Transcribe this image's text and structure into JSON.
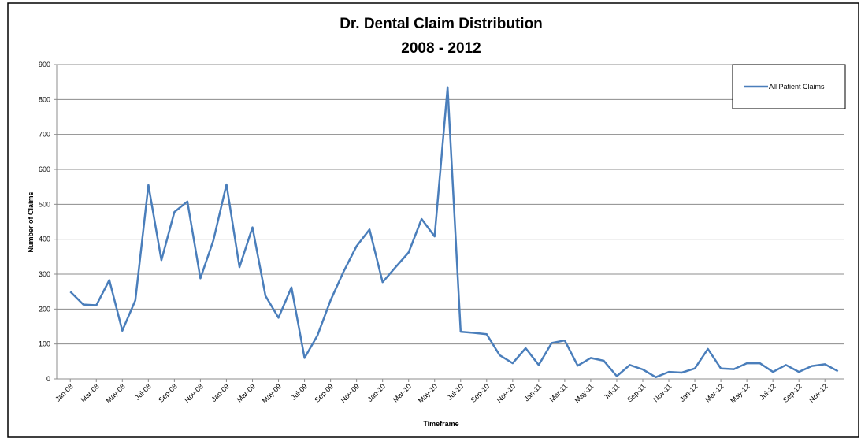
{
  "chart_data": {
    "type": "line",
    "title": "Dr. Dental Claim Distribution",
    "subtitle": "2008 - 2012",
    "x_label": "Timeframe",
    "y_label": "Number of Claims",
    "categories": [
      "Jan-08",
      null,
      "Mar-08",
      null,
      "May-08",
      null,
      "Jul-08",
      null,
      "Sep-08",
      null,
      "Nov-08",
      null,
      "Jan-09",
      null,
      "Mar-09",
      null,
      "May-09",
      null,
      "Jul-09",
      null,
      "Sep-09",
      null,
      "Nov-09",
      null,
      "Jan-10",
      null,
      "Mar-10",
      null,
      "May-10",
      null,
      "Jul-10",
      null,
      "Sep-10",
      null,
      "Nov-10",
      null,
      "Jan-11",
      null,
      "Mar-11",
      null,
      "May-11",
      null,
      "Jul-11",
      null,
      "Sep-11",
      null,
      "Nov-11",
      null,
      "Jan-12",
      null,
      "Mar-12",
      null,
      "May-12",
      null,
      "Jul-12",
      null,
      "Sep-12",
      null,
      "Nov-12",
      null
    ],
    "series": [
      {
        "name": "All Patient Claims",
        "color": "#4a7ebb",
        "values": [
          250,
          213,
          211,
          283,
          138,
          225,
          555,
          340,
          478,
          508,
          288,
          397,
          557,
          320,
          434,
          238,
          175,
          262,
          60,
          125,
          225,
          307,
          380,
          428,
          277,
          320,
          362,
          458,
          408,
          835,
          135,
          132,
          128,
          68,
          45,
          88,
          40,
          103,
          110,
          38,
          60,
          52,
          8,
          40,
          27,
          5,
          20,
          18,
          30,
          86,
          30,
          28,
          45,
          45,
          20,
          40,
          20,
          37,
          42,
          22
        ]
      }
    ],
    "ylim": [
      0,
      900
    ],
    "yticks": [
      0,
      100,
      200,
      300,
      400,
      500,
      600,
      700,
      800,
      900
    ],
    "grid": true,
    "legend": "top-right"
  }
}
